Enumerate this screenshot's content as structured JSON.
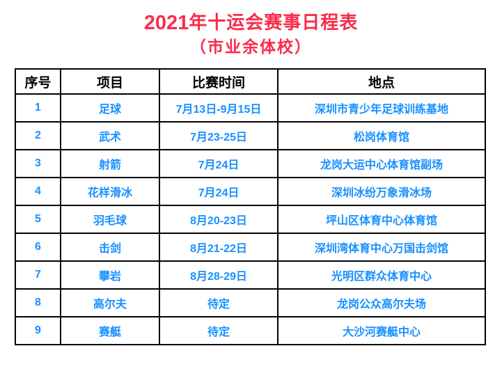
{
  "header": {
    "title_year": "2021",
    "title_text": "年十运会赛事日程表",
    "subtitle": "（市业余体校）"
  },
  "colors": {
    "title_red": "#fa2b4a",
    "cell_blue": "#1890ff",
    "border_black": "#000000"
  },
  "table": {
    "headers": [
      "序号",
      "项目",
      "比赛时间",
      "地点"
    ],
    "rows": [
      {
        "seq": "1",
        "event": "足球",
        "time": "7月13日-9月15日",
        "venue": "深圳市青少年足球训练基地"
      },
      {
        "seq": "2",
        "event": "武术",
        "time": "7月23-25日",
        "venue": "松岗体育馆"
      },
      {
        "seq": "3",
        "event": "射箭",
        "time": "7月24日",
        "venue": "龙岗大运中心体育馆副场"
      },
      {
        "seq": "4",
        "event": "花样滑冰",
        "time": "7月24日",
        "venue": "深圳冰纷万象滑冰场"
      },
      {
        "seq": "5",
        "event": "羽毛球",
        "time": "8月20-23日",
        "venue": "坪山区体育中心体育馆"
      },
      {
        "seq": "6",
        "event": "击剑",
        "time": "8月21-22日",
        "venue": "深圳湾体育中心万国击剑馆"
      },
      {
        "seq": "7",
        "event": "攀岩",
        "time": "8月28-29日",
        "venue": "光明区群众体育中心"
      },
      {
        "seq": "8",
        "event": "高尔夫",
        "time": "待定",
        "venue": "龙岗公众高尔夫场"
      },
      {
        "seq": "9",
        "event": "赛艇",
        "time": "待定",
        "venue": "大沙河赛艇中心"
      }
    ]
  }
}
